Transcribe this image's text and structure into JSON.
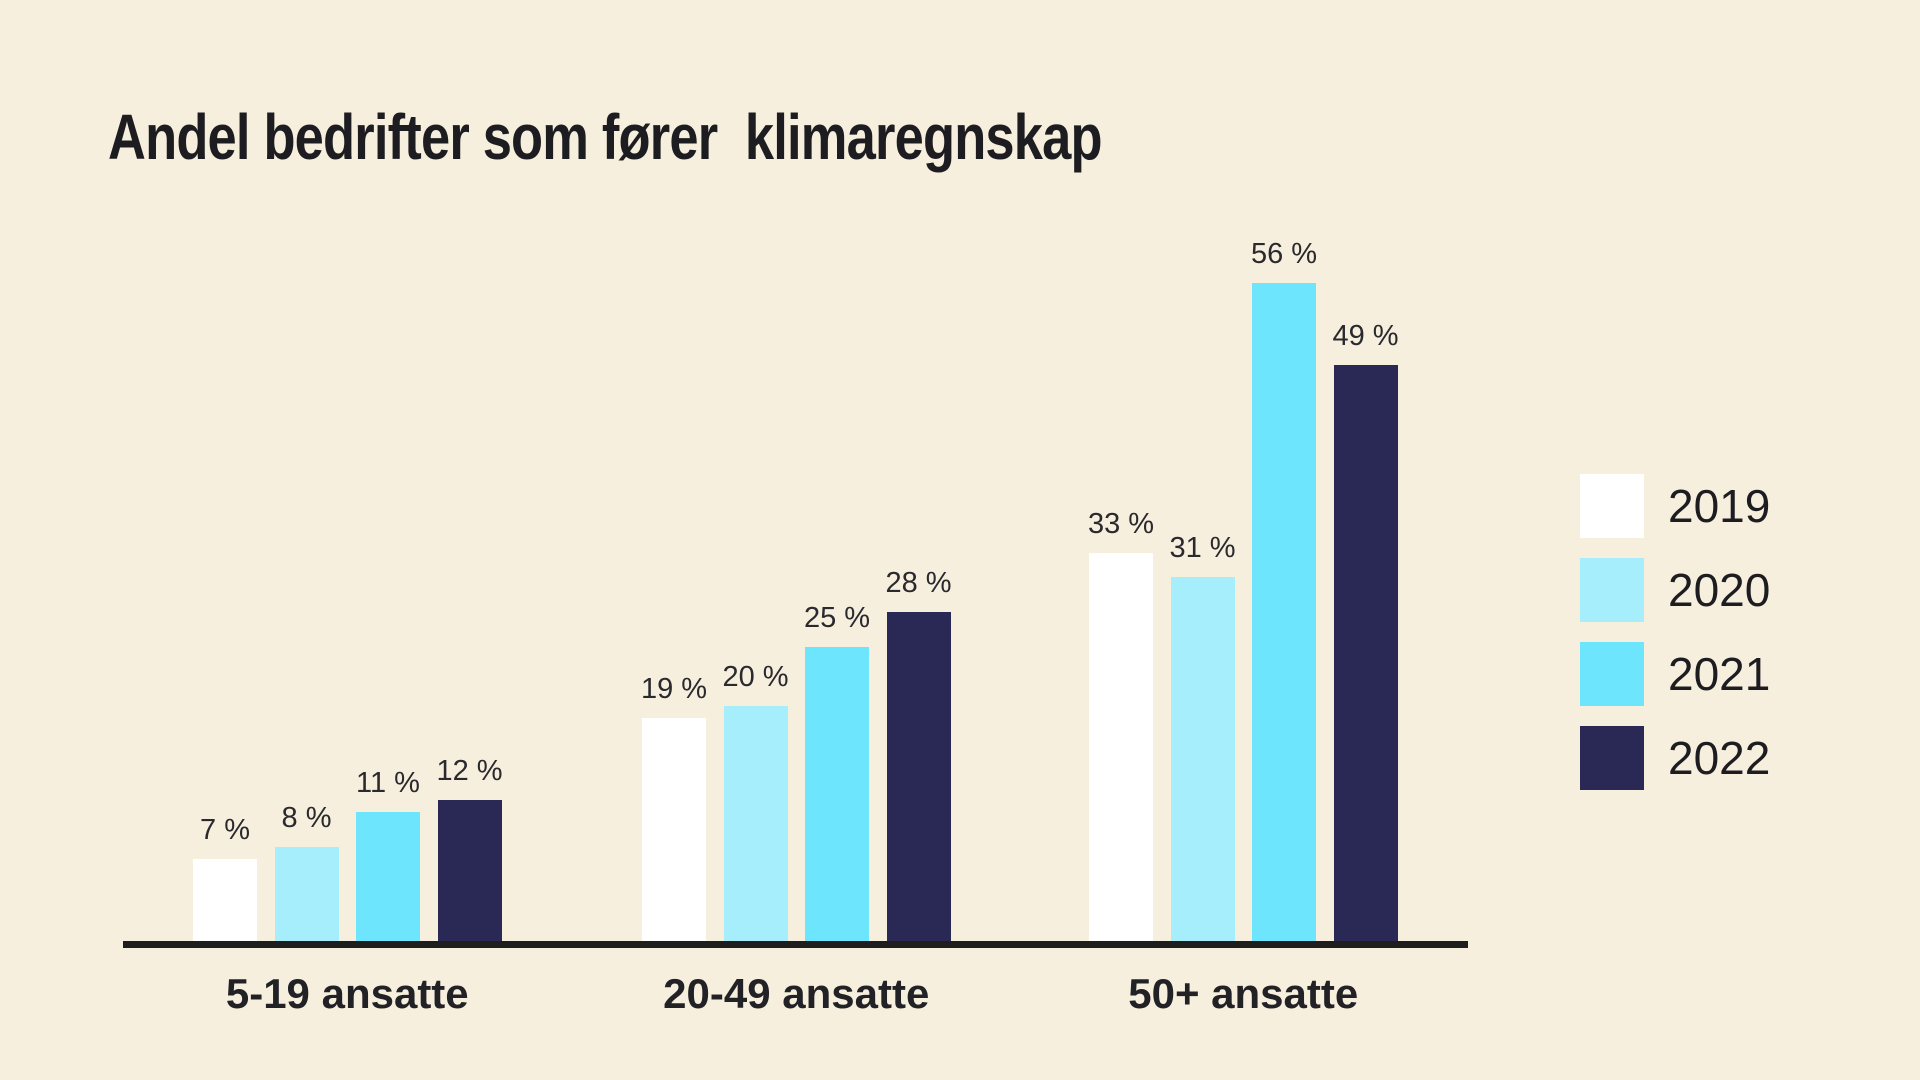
{
  "title": "Andel bedrifter som fører  klimaregnskap",
  "chart_data": {
    "type": "bar",
    "title": "Andel bedrifter som fører  klimaregnskap",
    "categories": [
      "5-19 ansatte",
      "20-49 ansatte",
      "50+ ansatte"
    ],
    "series": [
      {
        "name": "2019",
        "color": "#ffffff",
        "values": [
          7,
          19,
          33
        ]
      },
      {
        "name": "2020",
        "color": "#a6eefb",
        "values": [
          8,
          20,
          31
        ]
      },
      {
        "name": "2021",
        "color": "#6de5fc",
        "values": [
          11,
          25,
          56
        ]
      },
      {
        "name": "2022",
        "color": "#2a2956",
        "values": [
          12,
          28,
          49
        ]
      }
    ],
    "value_suffix": " %",
    "value_labels": [
      [
        "7 %",
        "19 %",
        "33 %"
      ],
      [
        "8 %",
        "20 %",
        "31 %"
      ],
      [
        "11 %",
        "25 %",
        "56 %"
      ],
      [
        "12 %",
        "28 %",
        "49 %"
      ]
    ],
    "xlabel": "",
    "ylabel": "",
    "ylim": [
      0,
      60
    ],
    "grid": false,
    "y_axis_visible": false,
    "legend_position": "right",
    "legend_entries": [
      "2019",
      "2020",
      "2021",
      "2022"
    ],
    "colors": {
      "background": "#f7efde",
      "axis_line": "#1e1e1e",
      "text": "#1d1d21"
    }
  }
}
